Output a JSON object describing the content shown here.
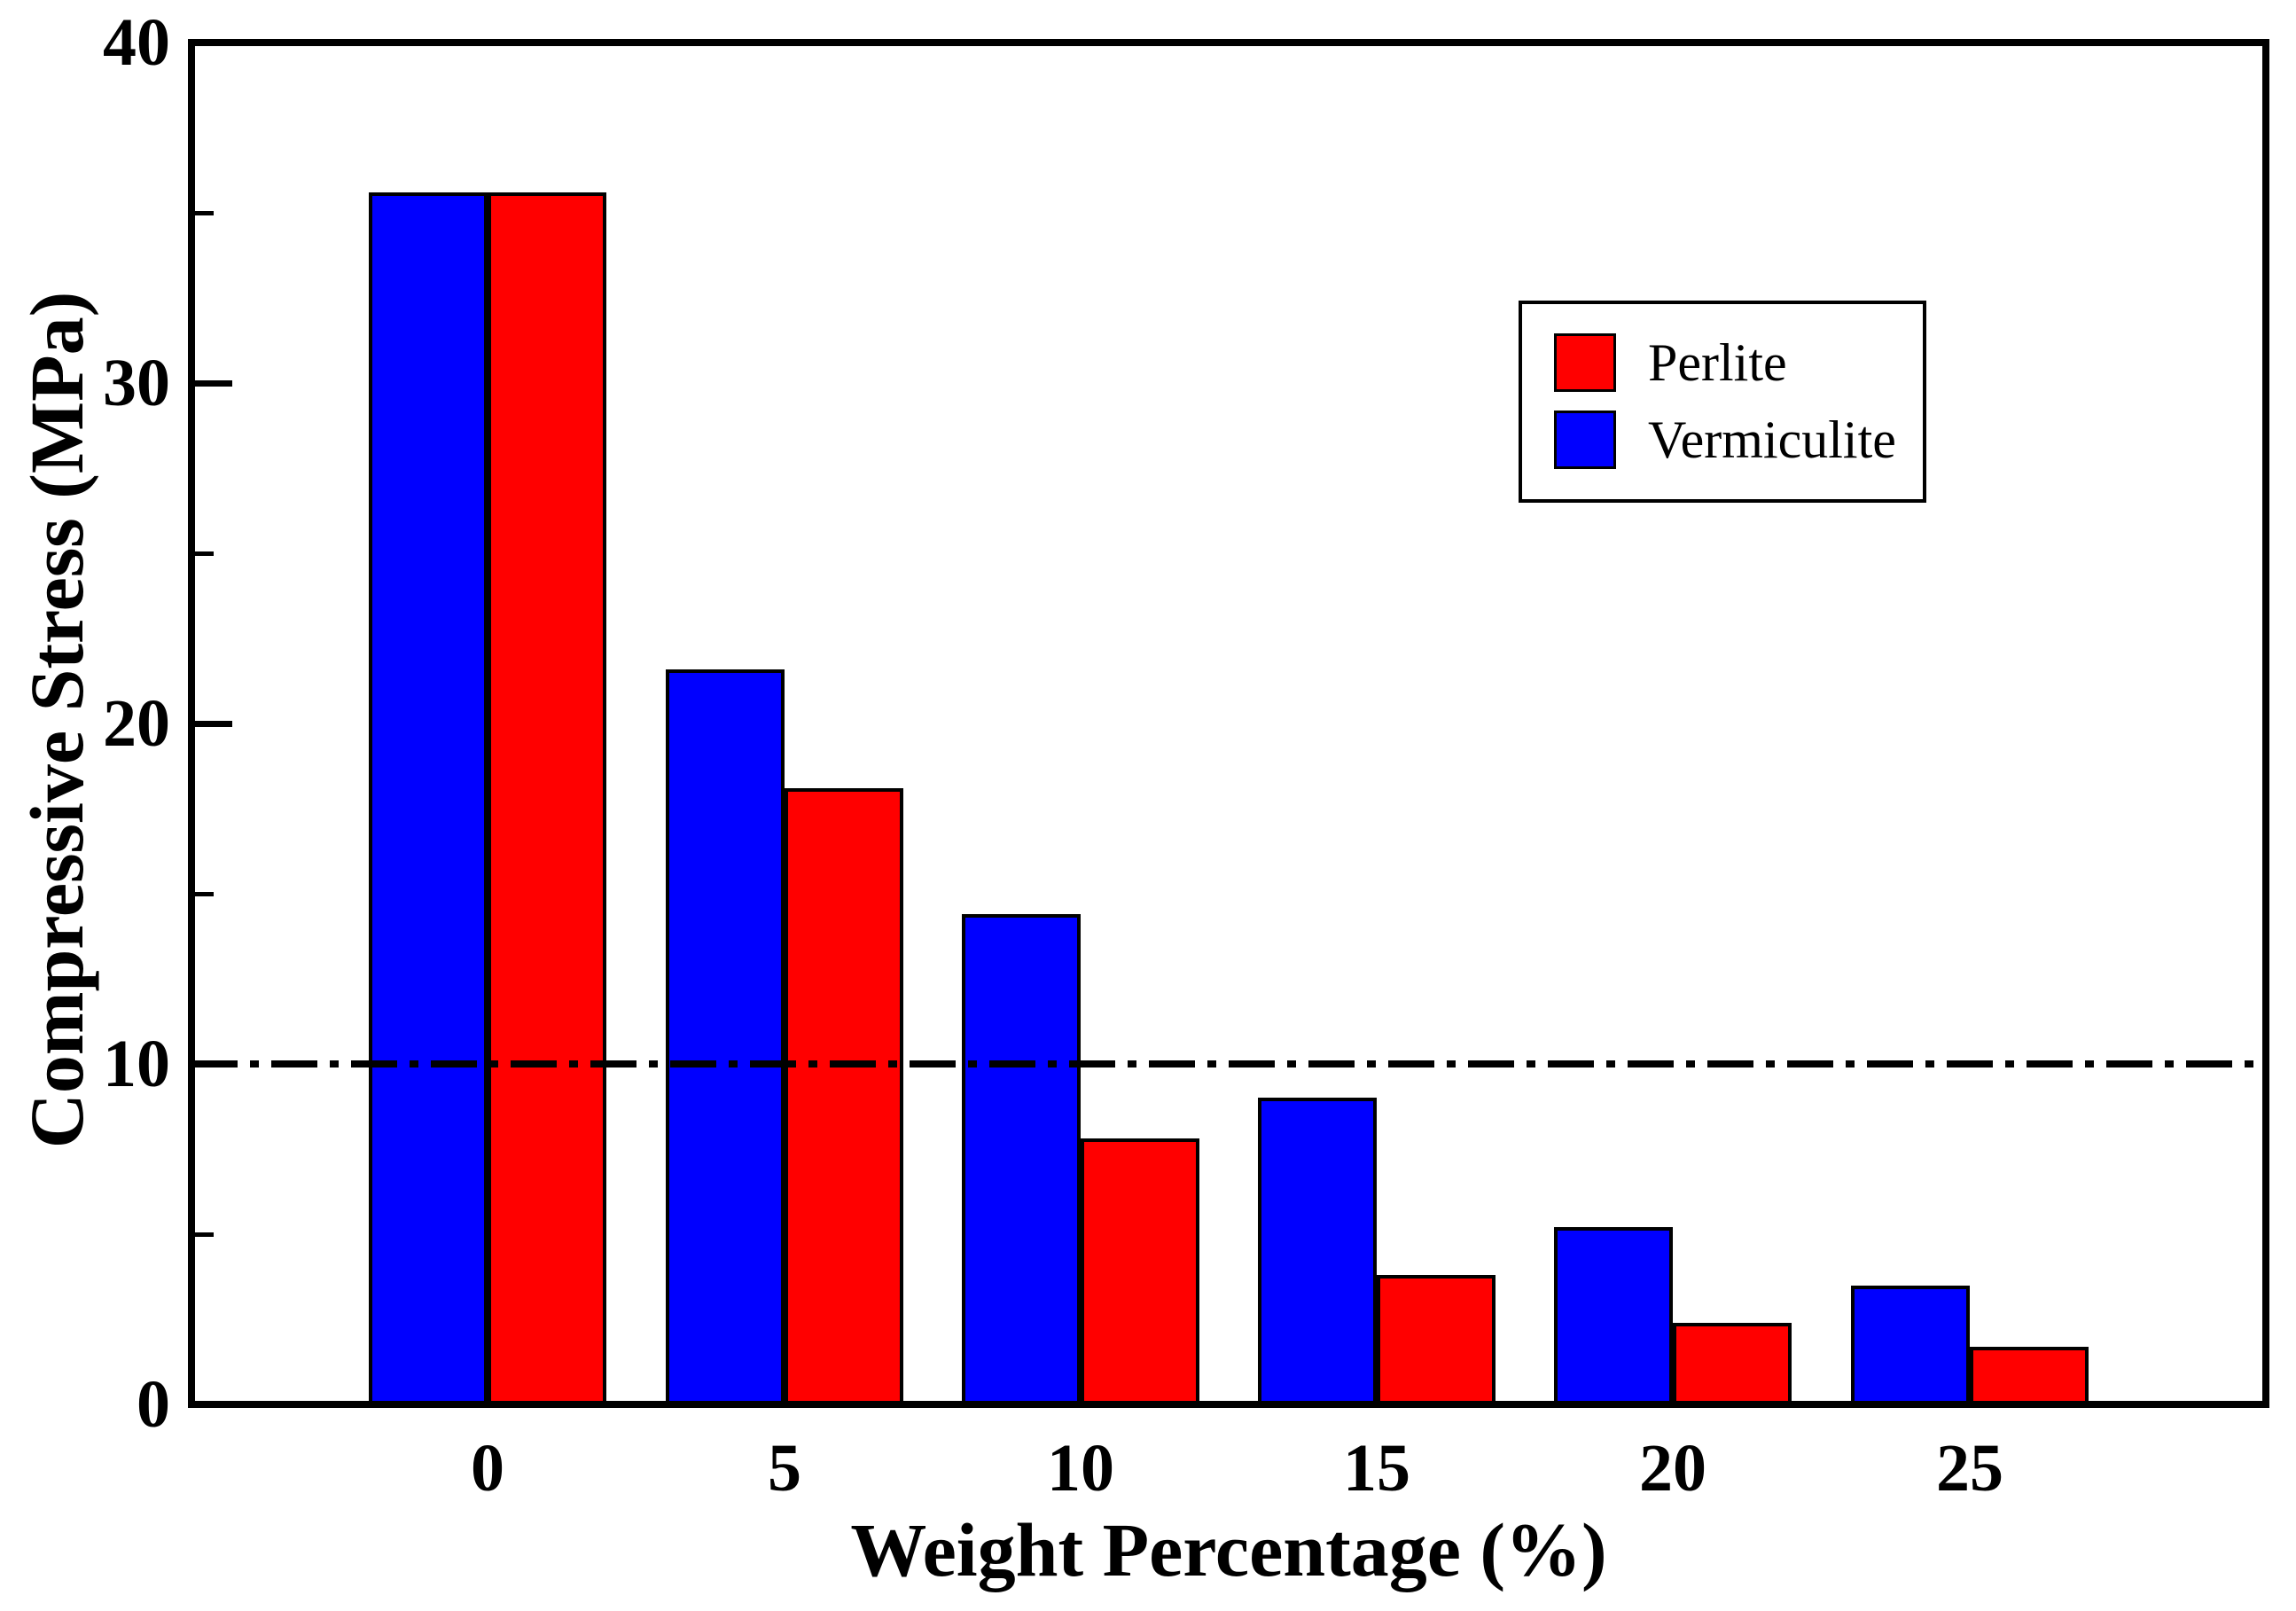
{
  "figure": {
    "background_color": "#ffffff",
    "frame_color": "#000000"
  },
  "axes": {
    "y": {
      "title": "Compressive Stress (MPa)",
      "range": [
        0,
        40
      ],
      "major_ticks": [
        0,
        10,
        20,
        30,
        40
      ],
      "minor_ticks": [
        5,
        15,
        25,
        35
      ],
      "tick_labels": [
        "0",
        "10",
        "20",
        "30",
        "40"
      ]
    },
    "x": {
      "title": "Weight Percentage (%)",
      "tick_labels": [
        "0",
        "5",
        "10",
        "15",
        "20",
        "25"
      ]
    }
  },
  "legend": {
    "position": "upper-right",
    "items": [
      {
        "label": "Perlite",
        "swatch": "red-square",
        "color": "#ff0000"
      },
      {
        "label": "Vermiculite",
        "swatch": "blue-square",
        "color": "#0000ff"
      }
    ]
  },
  "reference_line": {
    "y": 10,
    "style": "dash-dot",
    "color": "#000000"
  },
  "chart_data": {
    "type": "bar",
    "title": "",
    "categories": [
      0,
      5,
      10,
      15,
      20,
      25
    ],
    "xlabel": "Weight Percentage (%)",
    "ylabel": "Compressive Stress (MPa)",
    "ylim": [
      0,
      40
    ],
    "grid": false,
    "legend_position": "upper-right",
    "bar_layout": "grouped-touching, Vermiculite left, Perlite right, bar width 0.4 category units",
    "series": [
      {
        "name": "Perlite",
        "color": "#ff0000",
        "values": [
          35.6,
          18.1,
          7.8,
          3.8,
          2.4,
          1.7
        ]
      },
      {
        "name": "Vermiculite",
        "color": "#0000ff",
        "values": [
          35.6,
          21.6,
          14.4,
          9.0,
          5.2,
          3.5
        ]
      }
    ],
    "annotations": {
      "horizontal_reference_line_y": 10
    }
  }
}
